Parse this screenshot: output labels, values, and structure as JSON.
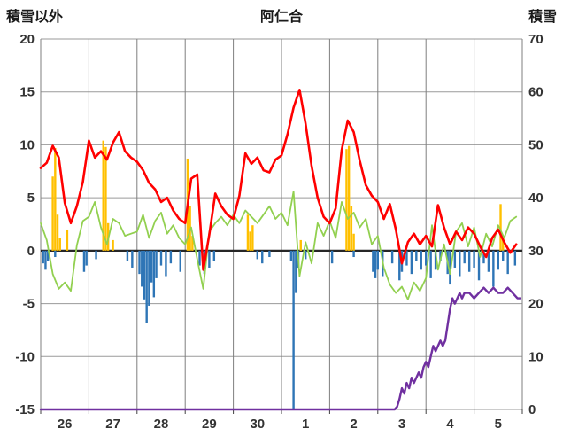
{
  "chart_data": {
    "type": "bar+line combo (dual axis)",
    "title": "阿仁合",
    "left_axis": {
      "label": "積雪以外",
      "min": -15,
      "max": 20,
      "ticks": [
        20,
        15,
        10,
        5,
        0,
        -5,
        -10,
        -15
      ]
    },
    "right_axis": {
      "label": "積雪",
      "min": 0,
      "max": 70,
      "ticks": [
        70,
        60,
        50,
        40,
        30,
        20,
        10,
        0
      ]
    },
    "x_axis": {
      "labels": [
        "26",
        "27",
        "28",
        "29",
        "30",
        "1",
        "2",
        "3",
        "4",
        "5"
      ],
      "days": 10,
      "grid": true
    },
    "colors": {
      "red_line": "#ff0000",
      "green_line": "#92d050",
      "purple_line": "#7030a0",
      "yellow_bars": "#ffc000",
      "blue_bars": "#2e75b6",
      "grid": "#9a9a9a",
      "grid_vertical": "#7f7f7f",
      "zero_line": "#262626",
      "text": "#333333"
    },
    "series": [
      {
        "name": "red-line",
        "type": "line",
        "axis": "left",
        "color": "#ff0000",
        "width": 2.6,
        "x_start": 0,
        "x_step": 0.125,
        "values": [
          7.8,
          8.3,
          9.9,
          8.8,
          4.5,
          2.6,
          4.2,
          6.5,
          10.4,
          8.8,
          9.4,
          8.6,
          10.2,
          11.2,
          9.4,
          8.8,
          8.4,
          7.6,
          6.4,
          5.8,
          4.6,
          5.0,
          3.8,
          3.0,
          2.6,
          6.8,
          7.2,
          -1.8,
          1.5,
          5.4,
          4.2,
          3.4,
          3.0,
          5.2,
          9.2,
          8.2,
          8.8,
          7.6,
          7.4,
          8.6,
          9.0,
          11.0,
          13.5,
          15.2,
          12.0,
          8.0,
          5.0,
          3.2,
          2.6,
          4.0,
          9.5,
          12.3,
          11.2,
          8.5,
          6.2,
          5.2,
          4.6,
          3.0,
          4.4,
          2.0,
          -1.2,
          0.8,
          1.6,
          0.6,
          1.4,
          0.4,
          4.3,
          2.2,
          0.6,
          1.8,
          1.0,
          2.2,
          1.6,
          0.4,
          -0.6,
          1.2,
          2.0,
          0.8,
          -0.2,
          0.6
        ]
      },
      {
        "name": "green-line",
        "type": "line",
        "axis": "left",
        "color": "#92d050",
        "width": 1.8,
        "x_start": 0,
        "x_step": 0.125,
        "values": [
          2.6,
          1.0,
          -2.2,
          -3.6,
          -3.0,
          -3.8,
          0.5,
          2.8,
          3.2,
          4.6,
          2.2,
          0.6,
          3.0,
          2.6,
          1.4,
          1.6,
          1.8,
          3.4,
          1.2,
          2.8,
          3.6,
          1.6,
          2.4,
          1.2,
          0.6,
          2.2,
          -0.8,
          -3.6,
          1.8,
          2.6,
          3.2,
          2.4,
          3.4,
          2.6,
          3.8,
          3.2,
          2.6,
          3.4,
          4.2,
          3.0,
          3.6,
          2.4,
          5.6,
          -2.4,
          0.8,
          -1.2,
          2.6,
          1.4,
          2.8,
          1.2,
          4.6,
          3.0,
          3.6,
          2.2,
          3.0,
          0.6,
          1.4,
          -1.6,
          -3.2,
          -4.0,
          -3.4,
          -4.6,
          -3.0,
          -3.8,
          -2.6,
          2.4,
          -1.8,
          0.6,
          -2.2,
          1.8,
          2.6,
          0.4,
          2.2,
          -0.6,
          1.6,
          0.4,
          2.4,
          1.2,
          2.8,
          3.2
        ]
      },
      {
        "name": "purple-line",
        "type": "line",
        "axis": "right",
        "color": "#7030a0",
        "width": 2.4,
        "points": [
          [
            0,
            0
          ],
          [
            7.35,
            0
          ],
          [
            7.4,
            0.5
          ],
          [
            7.45,
            2
          ],
          [
            7.5,
            4
          ],
          [
            7.55,
            3
          ],
          [
            7.6,
            5
          ],
          [
            7.65,
            4
          ],
          [
            7.7,
            6
          ],
          [
            7.75,
            5
          ],
          [
            7.8,
            6
          ],
          [
            7.85,
            7
          ],
          [
            7.9,
            6
          ],
          [
            7.95,
            8
          ],
          [
            8.0,
            9
          ],
          [
            8.05,
            8
          ],
          [
            8.1,
            10
          ],
          [
            8.15,
            12
          ],
          [
            8.2,
            11
          ],
          [
            8.25,
            12
          ],
          [
            8.3,
            13
          ],
          [
            8.35,
            12
          ],
          [
            8.4,
            13
          ],
          [
            8.45,
            16
          ],
          [
            8.5,
            19
          ],
          [
            8.55,
            21
          ],
          [
            8.6,
            20
          ],
          [
            8.65,
            21
          ],
          [
            8.7,
            22
          ],
          [
            8.75,
            21
          ],
          [
            8.8,
            22
          ],
          [
            8.9,
            22
          ],
          [
            9.0,
            21
          ],
          [
            9.1,
            22
          ],
          [
            9.2,
            23
          ],
          [
            9.3,
            22
          ],
          [
            9.4,
            23
          ],
          [
            9.5,
            22
          ],
          [
            9.6,
            22
          ],
          [
            9.7,
            23
          ],
          [
            9.8,
            22
          ],
          [
            9.9,
            21
          ],
          [
            9.95,
            21
          ]
        ]
      },
      {
        "name": "yellow-bars",
        "type": "bar",
        "axis": "left",
        "color": "#ffc000",
        "bar_width": 2.4,
        "points": [
          [
            0.25,
            7.0
          ],
          [
            0.3,
            9.7
          ],
          [
            0.35,
            3.4
          ],
          [
            0.4,
            1.2
          ],
          [
            0.55,
            2.0
          ],
          [
            1.3,
            10.4
          ],
          [
            1.35,
            9.8
          ],
          [
            1.4,
            2.6
          ],
          [
            1.5,
            1.0
          ],
          [
            3.05,
            8.7
          ],
          [
            3.1,
            4.2
          ],
          [
            3.15,
            1.4
          ],
          [
            4.3,
            3.4
          ],
          [
            4.35,
            1.8
          ],
          [
            4.4,
            2.4
          ],
          [
            5.4,
            1.0
          ],
          [
            6.35,
            9.6
          ],
          [
            6.4,
            9.9
          ],
          [
            6.45,
            4.2
          ],
          [
            6.5,
            1.6
          ],
          [
            9.55,
            4.4
          ],
          [
            9.6,
            1.2
          ]
        ]
      },
      {
        "name": "blue-bars",
        "type": "bar",
        "axis": "left",
        "color": "#2e75b6",
        "bar_width": 2.4,
        "points": [
          [
            0.05,
            -1.2
          ],
          [
            0.1,
            -1.8
          ],
          [
            0.15,
            -1.0
          ],
          [
            0.3,
            -0.6
          ],
          [
            0.9,
            -2.0
          ],
          [
            0.95,
            -1.4
          ],
          [
            1.15,
            -0.8
          ],
          [
            1.8,
            -1.0
          ],
          [
            1.9,
            -1.6
          ],
          [
            2.05,
            -2.2
          ],
          [
            2.1,
            -3.4
          ],
          [
            2.15,
            -4.6
          ],
          [
            2.2,
            -6.8
          ],
          [
            2.25,
            -5.2
          ],
          [
            2.3,
            -3.0
          ],
          [
            2.35,
            -4.4
          ],
          [
            2.4,
            -2.6
          ],
          [
            2.5,
            -1.4
          ],
          [
            2.6,
            -2.4
          ],
          [
            2.7,
            -1.2
          ],
          [
            2.9,
            -2.0
          ],
          [
            3.3,
            -1.4
          ],
          [
            3.4,
            -2.2
          ],
          [
            3.5,
            -1.6
          ],
          [
            3.6,
            -1.0
          ],
          [
            4.5,
            -0.8
          ],
          [
            4.6,
            -1.2
          ],
          [
            4.75,
            -0.6
          ],
          [
            5.2,
            -1.0
          ],
          [
            5.25,
            -15.0
          ],
          [
            5.3,
            -4.0
          ],
          [
            5.35,
            -1.6
          ],
          [
            5.5,
            -0.8
          ],
          [
            6.05,
            -1.2
          ],
          [
            6.5,
            -0.6
          ],
          [
            6.9,
            -2.0
          ],
          [
            6.95,
            -2.6
          ],
          [
            7.0,
            -1.8
          ],
          [
            7.1,
            -2.4
          ],
          [
            7.3,
            -1.2
          ],
          [
            7.45,
            -2.8
          ],
          [
            7.5,
            -2.0
          ],
          [
            7.6,
            -1.4
          ],
          [
            7.7,
            -2.2
          ],
          [
            7.8,
            -1.0
          ],
          [
            7.9,
            -1.8
          ],
          [
            8.0,
            -1.4
          ],
          [
            8.1,
            -2.6
          ],
          [
            8.2,
            -1.8
          ],
          [
            8.3,
            -1.0
          ],
          [
            8.45,
            -2.2
          ],
          [
            8.5,
            -3.2
          ],
          [
            8.6,
            -1.6
          ],
          [
            8.7,
            -2.4
          ],
          [
            8.8,
            -1.2
          ],
          [
            8.9,
            -2.0
          ],
          [
            9.0,
            -1.6
          ],
          [
            9.1,
            -2.8
          ],
          [
            9.2,
            -1.2
          ],
          [
            9.3,
            -2.0
          ],
          [
            9.4,
            -3.4
          ],
          [
            9.5,
            -1.8
          ],
          [
            9.6,
            -1.0
          ],
          [
            9.7,
            -2.2
          ],
          [
            9.85,
            -1.4
          ]
        ]
      }
    ]
  }
}
